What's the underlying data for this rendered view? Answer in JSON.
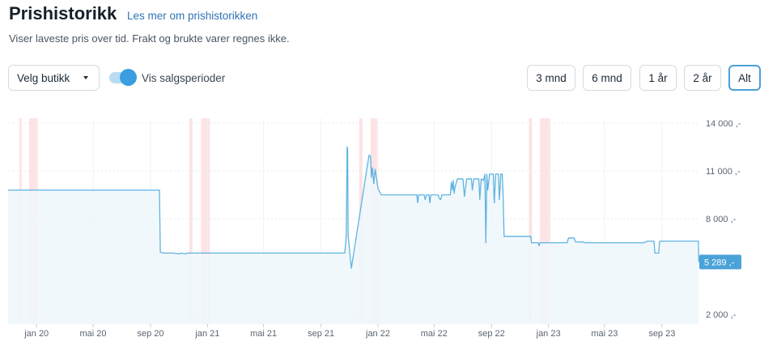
{
  "header": {
    "title": "Prishistorikk",
    "more_link": "Les mer om prishistorikken",
    "subtitle": "Viser laveste pris over tid. Frakt og brukte varer regnes ikke."
  },
  "controls": {
    "store_select": "Velg butikk",
    "toggle_label": "Vis salgsperioder",
    "toggle_on": true,
    "ranges": [
      "3 mnd",
      "6 mnd",
      "1 år",
      "2 år",
      "Alt"
    ],
    "active_range": "Alt"
  },
  "colors": {
    "line": "#5fb3e0",
    "area": "#eef7fb",
    "sale_band": "#fde3e5",
    "label_bg": "#4aa3d8"
  },
  "icons": {
    "toggle": "toggle-switch-icon",
    "caret": "caret-down-icon"
  },
  "chart_data": {
    "type": "area",
    "title": "",
    "xlabel": "",
    "ylabel": "",
    "x_range": [
      "2019-11-01",
      "2023-11-20"
    ],
    "ylim": [
      1400,
      14300
    ],
    "y_ticks": [
      2000,
      8000,
      11000,
      14000
    ],
    "y_tick_labels": [
      "2 000 ,-",
      "8 000 ,-",
      "11 000 ,-",
      "14 000 ,-"
    ],
    "x_ticks": [
      "2020-01-01",
      "2020-05-01",
      "2020-09-01",
      "2021-01-01",
      "2021-05-01",
      "2021-09-01",
      "2022-01-01",
      "2022-05-01",
      "2022-09-01",
      "2023-01-01",
      "2023-05-01",
      "2023-09-01"
    ],
    "x_tick_labels": [
      "jan 20",
      "mai 20",
      "sep 20",
      "jan 21",
      "mai 21",
      "sep 21",
      "jan 22",
      "mai 22",
      "sep 22",
      "jan 23",
      "mai 23",
      "sep 23"
    ],
    "grid": true,
    "legend": "none",
    "last_value_label": "5 289 ,-",
    "sale_periods": [
      [
        "2019-11-25",
        "2019-11-30"
      ],
      [
        "2019-12-16",
        "2020-01-04"
      ],
      [
        "2020-11-23",
        "2020-11-30"
      ],
      [
        "2020-12-18",
        "2021-01-06"
      ],
      [
        "2021-11-22",
        "2021-11-29"
      ],
      [
        "2021-12-16",
        "2021-12-30"
      ],
      [
        "2022-11-20",
        "2022-11-27"
      ],
      [
        "2022-12-14",
        "2023-01-05"
      ]
    ],
    "series": [
      {
        "points": [
          [
            "2019-11-01",
            9800
          ],
          [
            "2020-09-20",
            9800
          ],
          [
            "2020-09-22",
            5900
          ],
          [
            "2020-10-01",
            5850
          ],
          [
            "2020-10-20",
            5850
          ],
          [
            "2020-11-01",
            5800
          ],
          [
            "2020-11-05",
            5850
          ],
          [
            "2020-11-15",
            5800
          ],
          [
            "2020-11-18",
            5850
          ],
          [
            "2021-02-01",
            5850
          ],
          [
            "2021-06-01",
            5850
          ],
          [
            "2021-10-22",
            5850
          ],
          [
            "2021-10-25",
            6950
          ],
          [
            "2021-10-27",
            12500
          ],
          [
            "2021-10-28",
            12400
          ],
          [
            "2021-10-29",
            6950
          ],
          [
            "2021-11-05",
            4900
          ],
          [
            "2021-12-13",
            12000
          ],
          [
            "2021-12-16",
            11900
          ],
          [
            "2021-12-18",
            10600
          ],
          [
            "2021-12-20",
            11200
          ],
          [
            "2021-12-23",
            10200
          ],
          [
            "2021-12-26",
            11100
          ],
          [
            "2022-01-01",
            9900
          ],
          [
            "2022-01-08",
            9500
          ],
          [
            "2022-03-25",
            9500
          ],
          [
            "2022-03-27",
            9000
          ],
          [
            "2022-03-29",
            9500
          ],
          [
            "2022-04-10",
            9500
          ],
          [
            "2022-04-12",
            9200
          ],
          [
            "2022-04-15",
            9500
          ],
          [
            "2022-04-20",
            9500
          ],
          [
            "2022-04-22",
            9000
          ],
          [
            "2022-04-24",
            9500
          ],
          [
            "2022-05-10",
            9500
          ],
          [
            "2022-05-12",
            9300
          ],
          [
            "2022-05-15",
            9200
          ],
          [
            "2022-05-18",
            9500
          ],
          [
            "2022-06-05",
            9500
          ],
          [
            "2022-06-07",
            10300
          ],
          [
            "2022-06-09",
            9800
          ],
          [
            "2022-06-11",
            10400
          ],
          [
            "2022-06-13",
            9600
          ],
          [
            "2022-06-15",
            10000
          ],
          [
            "2022-06-20",
            10500
          ],
          [
            "2022-07-02",
            10500
          ],
          [
            "2022-07-05",
            9400
          ],
          [
            "2022-07-10",
            10500
          ],
          [
            "2022-07-20",
            10500
          ],
          [
            "2022-07-22",
            9800
          ],
          [
            "2022-07-25",
            10500
          ],
          [
            "2022-08-05",
            10500
          ],
          [
            "2022-08-07",
            9200
          ],
          [
            "2022-08-10",
            10500
          ],
          [
            "2022-08-15",
            10400
          ],
          [
            "2022-08-18",
            10800
          ],
          [
            "2022-08-20",
            6500
          ],
          [
            "2022-08-22",
            10800
          ],
          [
            "2022-08-24",
            9800
          ],
          [
            "2022-08-28",
            10800
          ],
          [
            "2022-09-05",
            10800
          ],
          [
            "2022-09-07",
            9000
          ],
          [
            "2022-09-10",
            10800
          ],
          [
            "2022-09-16",
            10800
          ],
          [
            "2022-09-18",
            9200
          ],
          [
            "2022-09-21",
            10800
          ],
          [
            "2022-09-24",
            10800
          ],
          [
            "2022-09-26",
            9500
          ],
          [
            "2022-09-28",
            6900
          ],
          [
            "2022-11-24",
            6900
          ],
          [
            "2022-11-26",
            6500
          ],
          [
            "2022-12-10",
            6500
          ],
          [
            "2022-12-12",
            6300
          ],
          [
            "2022-12-14",
            6500
          ],
          [
            "2023-01-20",
            6500
          ],
          [
            "2023-02-10",
            6500
          ],
          [
            "2023-02-13",
            6800
          ],
          [
            "2023-02-25",
            6800
          ],
          [
            "2023-02-28",
            6550
          ],
          [
            "2023-03-15",
            6550
          ],
          [
            "2023-03-20",
            6500
          ],
          [
            "2023-07-25",
            6500
          ],
          [
            "2023-08-01",
            6600
          ],
          [
            "2023-08-15",
            6600
          ],
          [
            "2023-08-17",
            5850
          ],
          [
            "2023-08-25",
            5850
          ],
          [
            "2023-08-27",
            6600
          ],
          [
            "2023-10-01",
            6600
          ],
          [
            "2023-11-01",
            6600
          ],
          [
            "2023-11-18",
            6600
          ],
          [
            "2023-11-19",
            5289
          ]
        ]
      }
    ]
  }
}
